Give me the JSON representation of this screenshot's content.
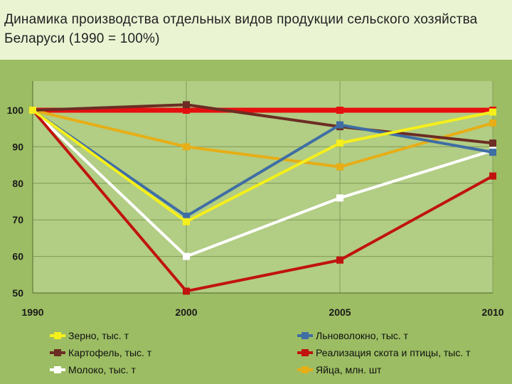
{
  "title": "Динамика производства отдельных видов продукции сельского хозяйства Беларуси (1990 = 100%)",
  "chart_data": {
    "type": "line",
    "title": "Динамика производства отдельных видов продукции сельского хозяйства Беларуси (1990 = 100%)",
    "x": [
      "1990",
      "2000",
      "2005",
      "2010"
    ],
    "ylim": [
      50,
      100
    ],
    "yticks": [
      50,
      60,
      70,
      80,
      90,
      100
    ],
    "grid": true,
    "legend_position": "bottom",
    "series": [
      {
        "name": "Зерно, тыс. т",
        "color": "#f5ef1c",
        "values": [
          100,
          69.5,
          91,
          99.5
        ]
      },
      {
        "name": "Льноволокно, тыс. т",
        "color": "#3f6ea5",
        "values": [
          100,
          71,
          96,
          88.5
        ]
      },
      {
        "name": "Картофель, тыс. т",
        "color": "#6b2d24",
        "values": [
          100,
          101.5,
          95.5,
          91
        ]
      },
      {
        "name": "Реализация скота и птицы, тыс. т",
        "color": "#c0130f",
        "values": [
          100,
          50.5,
          59,
          82
        ]
      },
      {
        "name": "Молоко, тыс. т",
        "color": "#ffffff",
        "values": [
          100,
          60,
          76,
          89
        ]
      },
      {
        "name": "Яйца, млн. шт",
        "color": "#e7ae16",
        "values": [
          100,
          90,
          84.5,
          96.5
        ]
      },
      {
        "name": "",
        "color": "#e50f0f",
        "values": [
          100,
          100,
          100,
          100
        ]
      }
    ]
  }
}
